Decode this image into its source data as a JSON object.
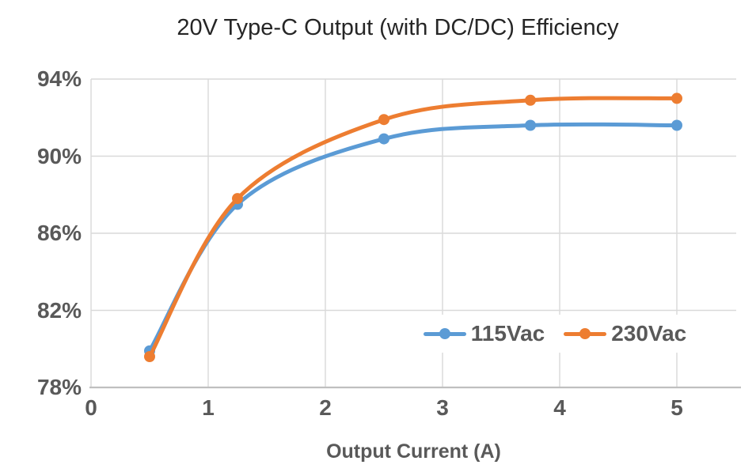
{
  "chart_data": {
    "type": "line",
    "title": "20V Type-C Output (with DC/DC) Efficiency",
    "xlabel": "Output Current (A)",
    "ylabel": "",
    "x": [
      0.5,
      1.25,
      2.5,
      3.75,
      5
    ],
    "series": [
      {
        "name": "115Vac",
        "color": "#5B9BD5",
        "values": [
          79.9,
          87.5,
          90.9,
          91.6,
          91.6
        ]
      },
      {
        "name": "230Vac",
        "color": "#ED7D31",
        "values": [
          79.6,
          87.8,
          91.9,
          92.9,
          93.0
        ]
      }
    ],
    "x_ticks": [
      {
        "value": 0,
        "label": "0"
      },
      {
        "value": 1,
        "label": "1"
      },
      {
        "value": 2,
        "label": "2"
      },
      {
        "value": 3,
        "label": "3"
      },
      {
        "value": 4,
        "label": "4"
      },
      {
        "value": 5,
        "label": "5"
      }
    ],
    "y_ticks": [
      {
        "value": 94,
        "label": "94%"
      },
      {
        "value": 90,
        "label": "90%"
      },
      {
        "value": 86,
        "label": "86%"
      },
      {
        "value": 82,
        "label": "82%"
      },
      {
        "value": 78,
        "label": "78%"
      }
    ],
    "x_range": [
      0,
      5.5
    ],
    "y_range": [
      78,
      94
    ],
    "grid": true,
    "smooth": true,
    "marker": "circle",
    "legend_position": "inside-bottom-right"
  },
  "colors": {
    "title_text": "#262626",
    "axis_text": "#595959",
    "gridline": "#D9D9D9",
    "axis_line": "#BFBFBF",
    "background": "#FFFFFF",
    "series_115vac": "#5B9BD5",
    "series_230vac": "#ED7D31"
  }
}
